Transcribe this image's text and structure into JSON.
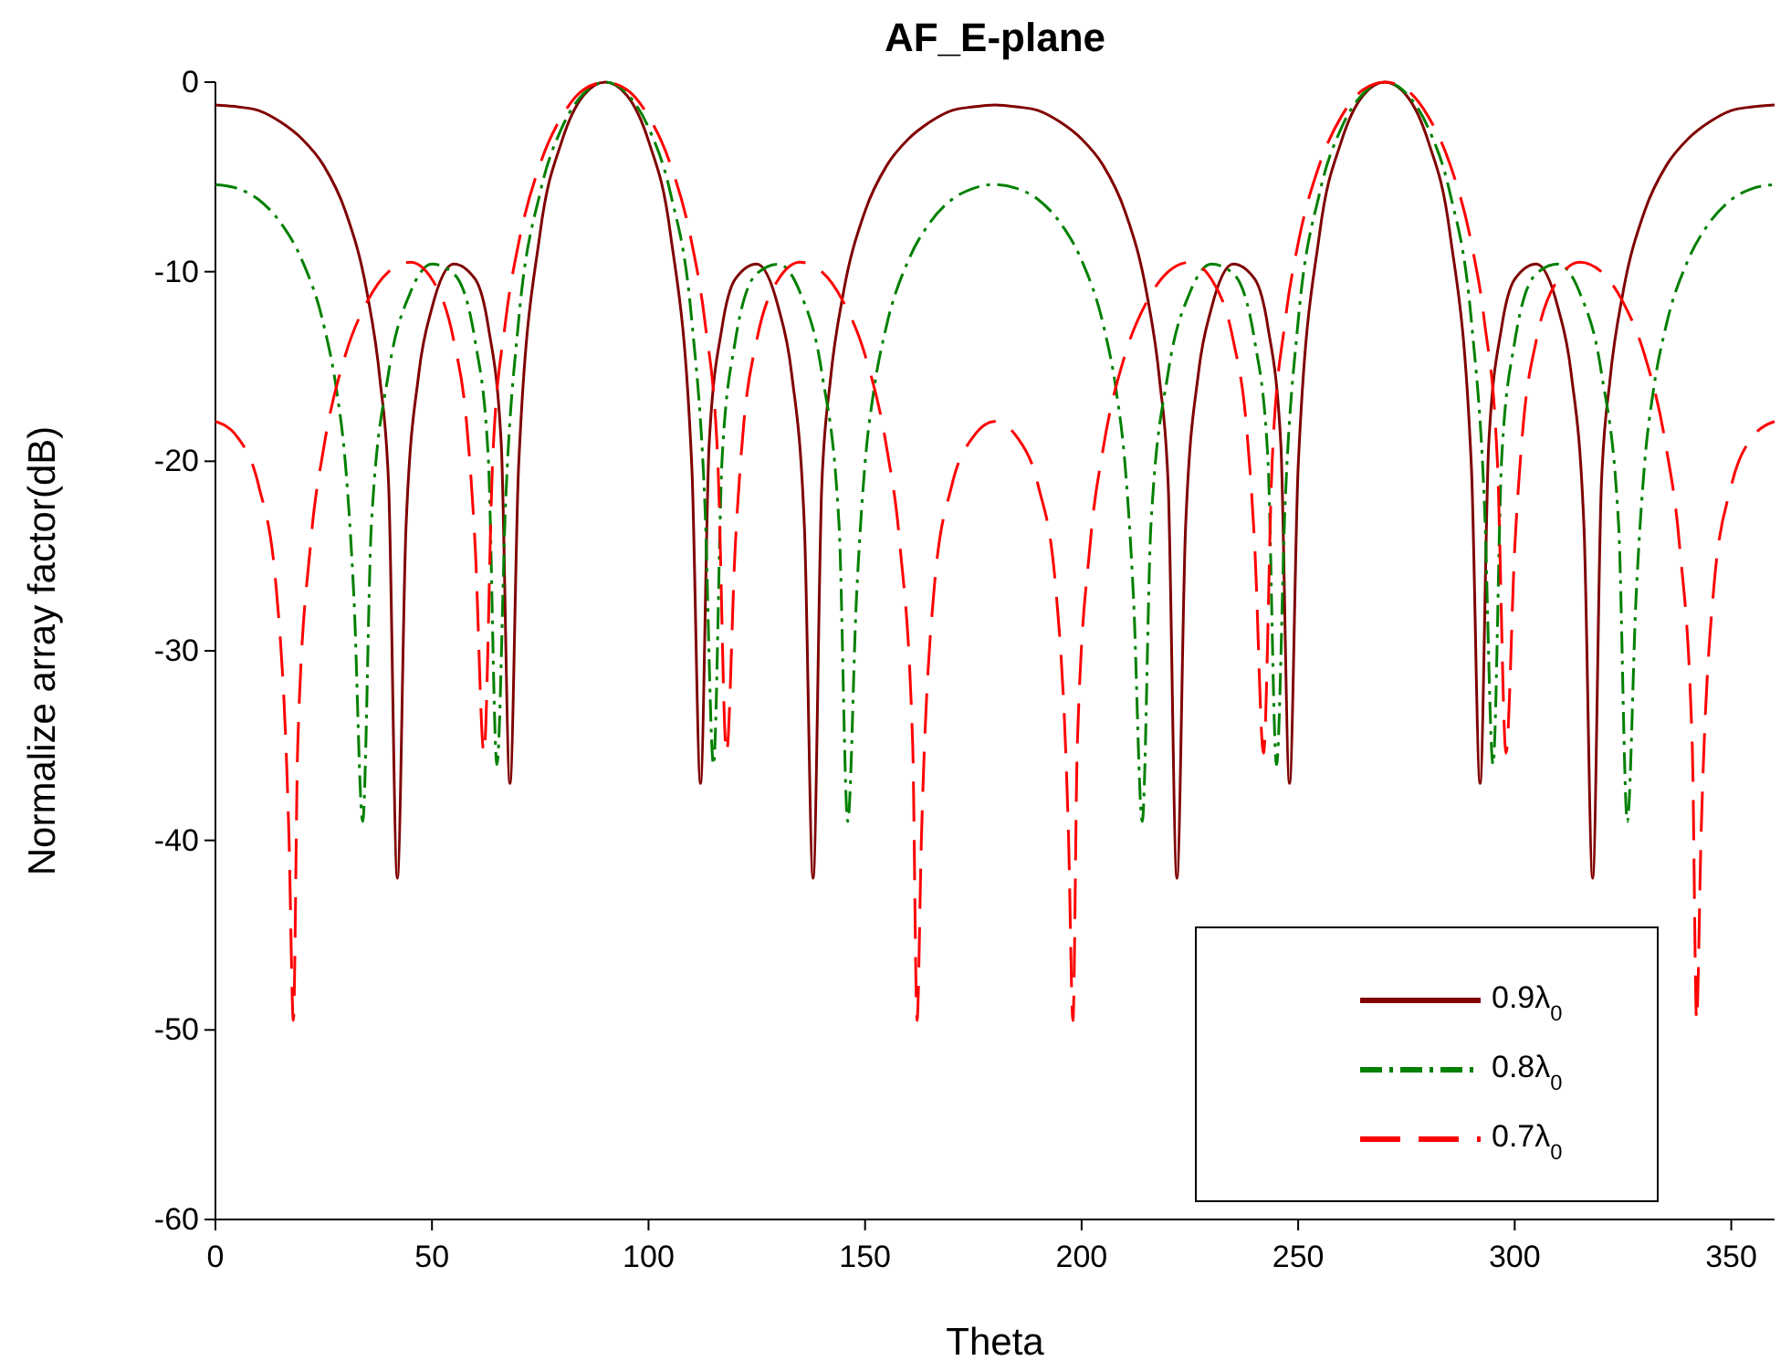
{
  "chart_data": {
    "type": "line",
    "title": "AF_E-plane",
    "xlabel": "Theta",
    "ylabel": "Normalize array factor(dB)",
    "xlim": [
      0,
      360
    ],
    "xticks": [
      0,
      50,
      100,
      150,
      200,
      250,
      300,
      350
    ],
    "ylim": [
      -60,
      0
    ],
    "yticks": [
      -60,
      -50,
      -40,
      -30,
      -20,
      -10,
      0
    ],
    "grid": false,
    "legend": "bottom right",
    "marker": "none",
    "series": [
      {
        "name": "0.9λ$_{0}$",
        "color": "#800000",
        "line_style": "solid",
        "x": [
          0,
          5,
          10,
          15,
          20,
          25,
          30,
          35,
          38,
          40,
          42,
          44,
          47,
          50,
          55,
          60,
          63,
          66,
          68,
          70,
          75,
          80,
          85,
          90,
          95,
          100,
          105,
          110,
          112,
          114,
          117,
          120,
          125,
          130,
          133,
          136,
          138,
          140,
          142,
          145,
          150,
          155,
          160,
          165,
          170,
          175,
          180,
          185,
          190,
          195,
          200,
          205,
          210,
          215,
          218,
          220,
          222,
          224,
          227,
          230,
          235,
          240,
          243,
          246,
          248,
          250,
          255,
          260,
          265,
          270,
          275,
          280,
          285,
          290,
          292,
          294,
          297,
          300,
          305,
          310,
          313,
          316,
          318,
          320,
          322,
          325,
          330,
          335,
          340,
          345,
          350,
          355,
          360
        ],
        "values": [
          -1.2,
          -1.3,
          -1.5,
          -2.1,
          -3.0,
          -4.4,
          -6.8,
          -11.1,
          -15.7,
          -21.3,
          -42,
          -23.5,
          -15.3,
          -11.9,
          -9.6,
          -10.4,
          -12.9,
          -19.1,
          -37,
          -20.3,
          -7.9,
          -3.1,
          -0.7,
          0,
          -0.7,
          -3.1,
          -7.9,
          -20.3,
          -37,
          -19.1,
          -12.9,
          -10.4,
          -9.6,
          -11.9,
          -15.3,
          -23.5,
          -42,
          -21.3,
          -15.7,
          -11.1,
          -6.8,
          -4.4,
          -3.0,
          -2.1,
          -1.5,
          -1.3,
          -1.2,
          -1.3,
          -1.5,
          -2.1,
          -3.0,
          -4.4,
          -6.8,
          -11.1,
          -15.7,
          -21.3,
          -42,
          -23.5,
          -15.3,
          -11.9,
          -9.6,
          -10.4,
          -12.9,
          -19.1,
          -37,
          -20.3,
          -7.9,
          -3.1,
          -0.7,
          0,
          -0.7,
          -3.1,
          -7.9,
          -20.3,
          -37,
          -19.1,
          -12.9,
          -10.4,
          -9.6,
          -11.9,
          -15.3,
          -23.5,
          -42,
          -21.3,
          -15.7,
          -11.1,
          -6.8,
          -4.4,
          -3.0,
          -2.1,
          -1.5,
          -1.3,
          -1.2
        ]
      },
      {
        "name": "0.8λ$_{0}$",
        "color": "#008000",
        "line_style": "dashdot",
        "x": [
          0,
          5,
          10,
          15,
          20,
          25,
          28,
          30,
          32,
          34,
          36,
          40,
          45,
          50,
          55,
          60,
          63,
          65,
          67,
          70,
          75,
          80,
          85,
          90,
          95,
          100,
          105,
          110,
          113,
          115,
          117,
          120,
          125,
          130,
          135,
          140,
          144,
          146,
          148,
          150,
          152,
          155,
          160,
          165,
          170,
          175,
          180,
          185,
          190,
          195,
          200,
          205,
          208,
          210,
          212,
          214,
          216,
          220,
          225,
          230,
          235,
          240,
          243,
          245,
          247,
          250,
          255,
          260,
          265,
          270,
          275,
          280,
          285,
          290,
          293,
          295,
          297,
          300,
          305,
          310,
          315,
          320,
          324,
          326,
          328,
          330,
          332,
          335,
          340,
          345,
          350,
          355,
          360
        ],
        "values": [
          -5.4,
          -5.6,
          -6.2,
          -7.4,
          -9.4,
          -12.8,
          -16.3,
          -20.1,
          -27.3,
          -39,
          -23.4,
          -15.3,
          -11.1,
          -9.6,
          -10.1,
          -13.7,
          -19.8,
          -36,
          -22.2,
          -12.6,
          -5.8,
          -2.4,
          -0.6,
          0,
          -0.6,
          -2.4,
          -5.8,
          -12.6,
          -22.2,
          -36,
          -19.8,
          -13.7,
          -10.1,
          -9.6,
          -11.1,
          -15.3,
          -23.4,
          -39,
          -27.3,
          -20.1,
          -16.3,
          -12.8,
          -9.4,
          -7.4,
          -6.2,
          -5.6,
          -5.4,
          -5.6,
          -6.2,
          -7.4,
          -9.4,
          -12.8,
          -16.3,
          -20.1,
          -27.3,
          -39,
          -23.4,
          -15.3,
          -11.1,
          -9.6,
          -10.1,
          -13.7,
          -19.8,
          -36,
          -22.2,
          -12.6,
          -5.8,
          -2.4,
          -0.6,
          0,
          -0.6,
          -2.4,
          -5.8,
          -12.6,
          -22.2,
          -36,
          -19.8,
          -13.7,
          -10.1,
          -9.6,
          -11.1,
          -15.3,
          -23.4,
          -39,
          -27.3,
          -20.1,
          -16.3,
          -12.8,
          -9.4,
          -7.4,
          -6.2,
          -5.6,
          -5.4
        ]
      },
      {
        "name": "0.7λ$_{0}$",
        "color": "#ff0000",
        "line_style": "dashed",
        "x": [
          0,
          5,
          10,
          14,
          17,
          18,
          19,
          22,
          25,
          30,
          35,
          40,
          45,
          50,
          55,
          58,
          60,
          62,
          64,
          67,
          70,
          75,
          80,
          85,
          90,
          95,
          100,
          105,
          110,
          113,
          116,
          118,
          120,
          122,
          125,
          130,
          135,
          140,
          145,
          150,
          155,
          158,
          161,
          162,
          163,
          166,
          170,
          175,
          180,
          185,
          190,
          194,
          197,
          198,
          199,
          202,
          205,
          210,
          215,
          220,
          225,
          230,
          235,
          238,
          240,
          242,
          244,
          247,
          250,
          255,
          260,
          265,
          270,
          275,
          280,
          285,
          290,
          293,
          296,
          298,
          300,
          302,
          305,
          310,
          315,
          320,
          325,
          330,
          335,
          338,
          341,
          342,
          343,
          346,
          350,
          355,
          360
        ],
        "values": [
          -17.9,
          -18.7,
          -21.3,
          -26.6,
          -40,
          -49.5,
          -35,
          -24.3,
          -19.3,
          -14.4,
          -11.6,
          -10.0,
          -9.5,
          -10.4,
          -13.6,
          -18.0,
          -24.6,
          -35.4,
          -20.0,
          -12.6,
          -8.5,
          -4.3,
          -1.8,
          -0.4,
          0,
          -0.4,
          -1.8,
          -4.3,
          -8.5,
          -12.6,
          -20.0,
          -35.4,
          -24.6,
          -18.0,
          -13.6,
          -10.4,
          -9.5,
          -10.0,
          -11.6,
          -14.4,
          -19.3,
          -24.3,
          -35,
          -49.5,
          -40,
          -26.6,
          -21.3,
          -18.7,
          -17.9,
          -18.7,
          -21.3,
          -26.6,
          -40,
          -49.5,
          -35,
          -24.3,
          -19.3,
          -14.4,
          -11.6,
          -10.0,
          -9.5,
          -10.4,
          -13.6,
          -18.0,
          -24.6,
          -35.4,
          -20.0,
          -12.6,
          -8.5,
          -4.3,
          -1.8,
          -0.4,
          0,
          -0.4,
          -1.8,
          -4.3,
          -8.5,
          -12.6,
          -20.0,
          -35.4,
          -24.6,
          -18.0,
          -13.6,
          -10.4,
          -9.5,
          -10.0,
          -11.6,
          -14.4,
          -19.3,
          -24.3,
          -35,
          -49.5,
          -40,
          -26.6,
          -21.3,
          -18.7,
          -17.9
        ]
      }
    ]
  }
}
